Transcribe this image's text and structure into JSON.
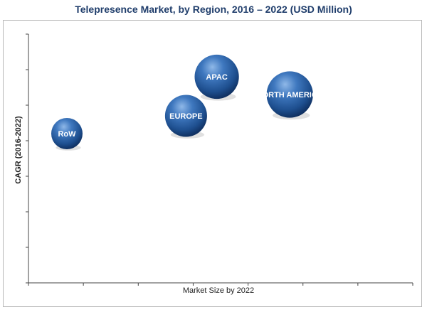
{
  "chart_data": {
    "type": "bubble",
    "title": "Telepresence Market, by Region, 2016 – 2022 (USD Million)",
    "xlabel": "Market Size by 2022",
    "ylabel": "CAGR (2016-2022)",
    "xlim": [
      0,
      10
    ],
    "ylim": [
      0,
      7
    ],
    "grid": false,
    "series": [
      {
        "label": "RoW",
        "x": 1.0,
        "y": 4.2,
        "size": 1.0
      },
      {
        "label": "EUROPE",
        "x": 4.1,
        "y": 4.7,
        "size": 1.8
      },
      {
        "label": "APAC",
        "x": 4.9,
        "y": 5.8,
        "size": 2.0
      },
      {
        "label": "NORTH AMERICA",
        "x": 6.8,
        "y": 5.3,
        "size": 2.2
      }
    ]
  }
}
